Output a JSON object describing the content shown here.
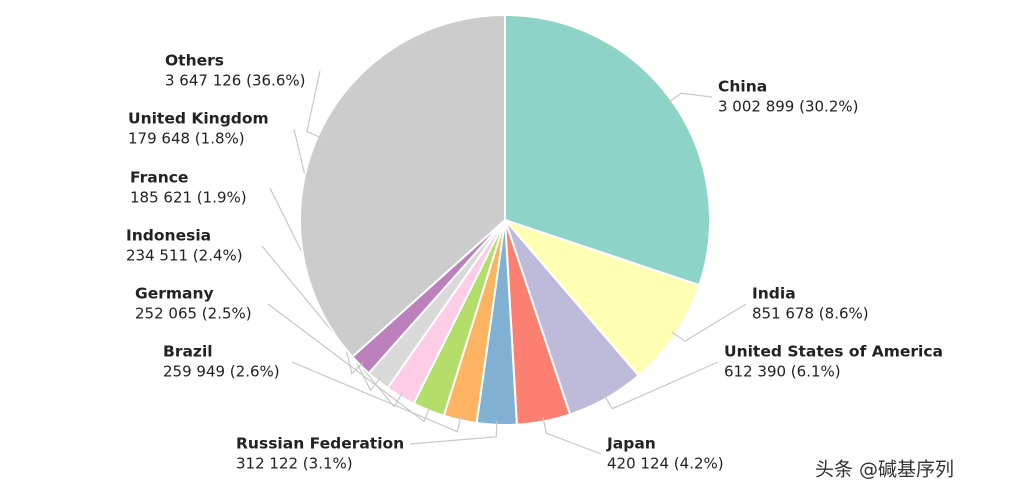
{
  "chart_data": {
    "type": "pie",
    "categories": [
      "China",
      "India",
      "United States of America",
      "Japan",
      "Russian Federation",
      "Brazil",
      "Germany",
      "Indonesia",
      "France",
      "United Kingdom",
      "Others"
    ],
    "values": [
      3002899,
      851678,
      612390,
      420124,
      312122,
      259949,
      252065,
      234511,
      185621,
      179648,
      3647126
    ],
    "value_labels": [
      "3 002 899 (30.2%)",
      "851 678 (8.6%)",
      "612 390 (6.1%)",
      "420 124 (4.2%)",
      "312 122 (3.1%)",
      "259 949 (2.6%)",
      "252 065 (2.5%)",
      "234 511 (2.4%)",
      "185 621 (1.9%)",
      "179 648 (1.8%)",
      "3 647 126 (36.6%)"
    ],
    "colors": [
      "#8dd3c7",
      "#ffffb3",
      "#bebada",
      "#fb8072",
      "#80b1d3",
      "#fdb462",
      "#b3de69",
      "#fccde5",
      "#d9d9d9",
      "#bc80bd",
      "#cccccc"
    ]
  },
  "watermark": "头条 @碱基序列"
}
